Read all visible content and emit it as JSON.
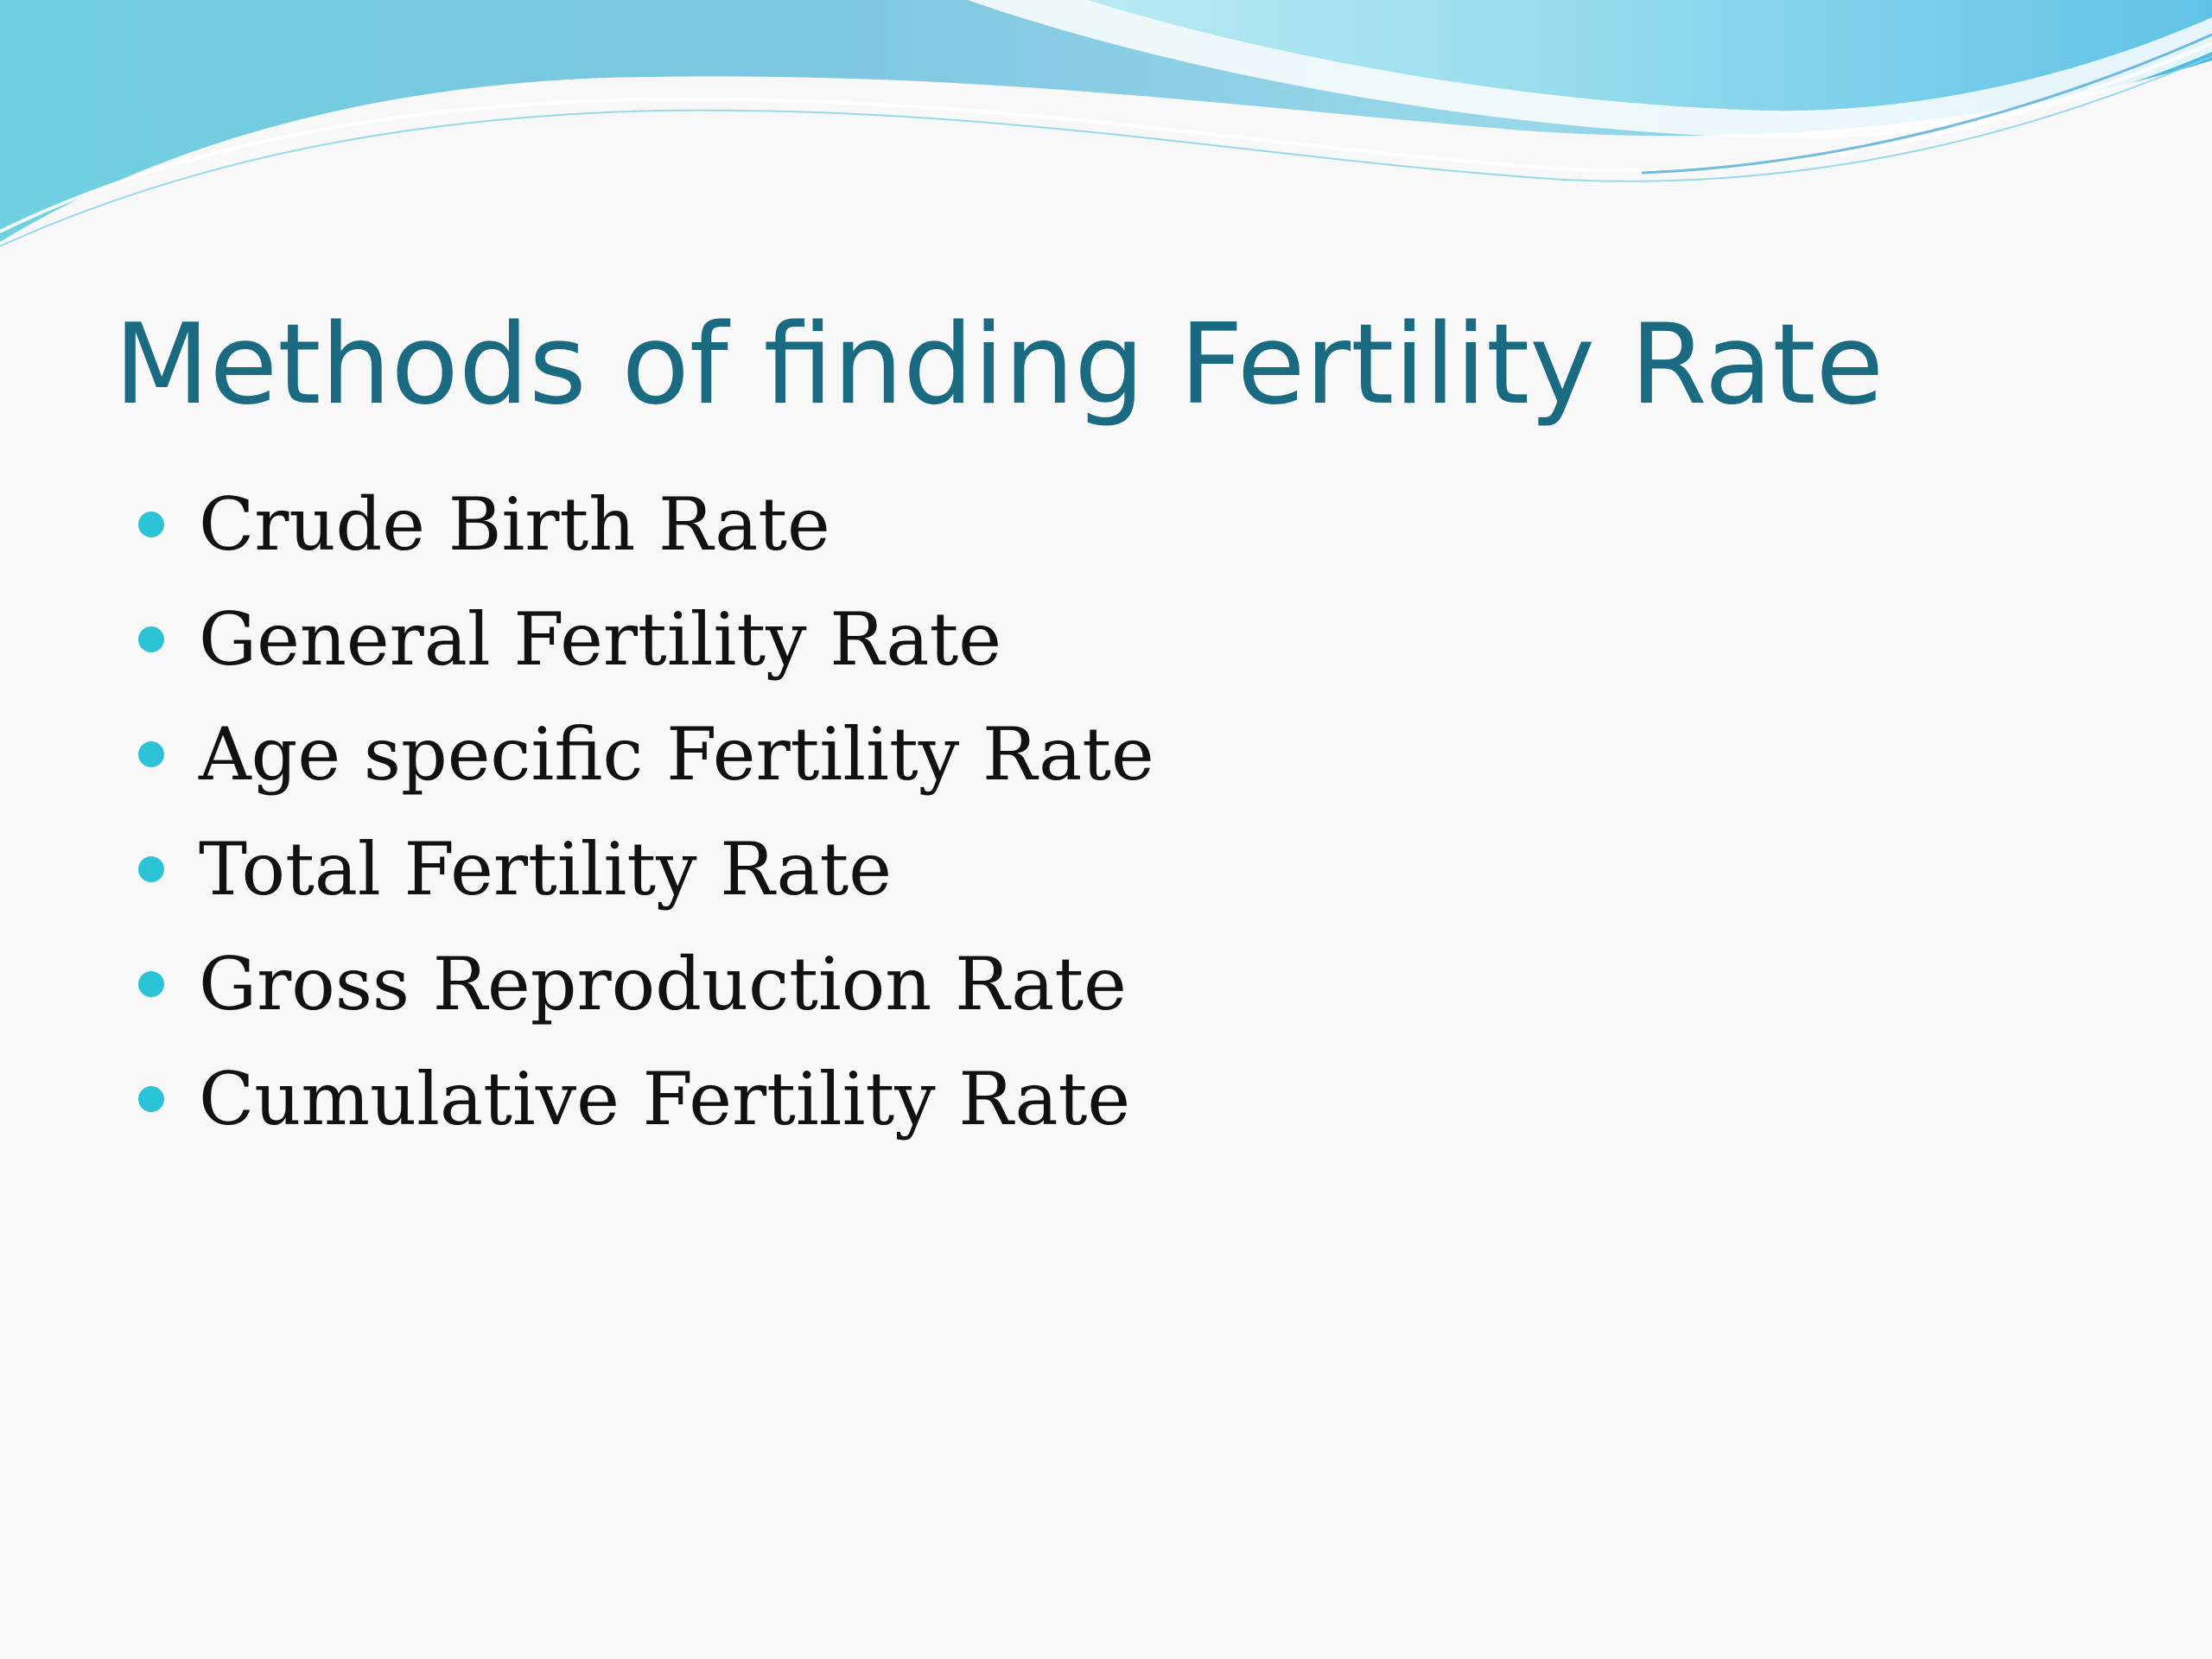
{
  "slide": {
    "title": "Methods of finding Fertility Rate",
    "bullets": [
      "Crude Birth Rate",
      "General Fertility Rate",
      "Age specific Fertility Rate",
      "Total Fertility Rate",
      "Gross Reproduction Rate",
      "Cumulative Fertility Rate"
    ]
  },
  "colors": {
    "title": "#1a6b82",
    "bullet_dot": "#2cc3d6",
    "wave_light": "#a8e4ee",
    "wave_mid": "#5fc7dc",
    "wave_dark": "#3aa8d0",
    "background": "#f8f8f8"
  }
}
